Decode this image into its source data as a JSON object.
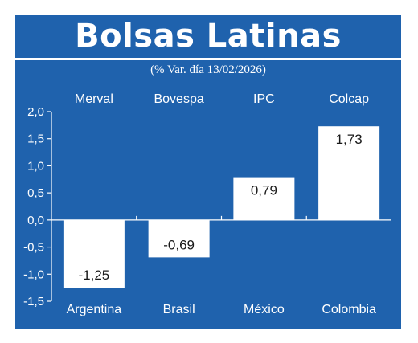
{
  "header": {
    "title": "Bolsas Latinas",
    "subtitle": "(% Var. día 13/02/2026)"
  },
  "colors": {
    "background": "#1f62ad",
    "bar": "#ffffff",
    "text": "#ffffff",
    "value_text": "#1a1a1a"
  },
  "chart_data": {
    "type": "bar",
    "categories": [
      "Argentina",
      "Brasil",
      "México",
      "Colombia"
    ],
    "index_names": [
      "Merval",
      "Bovespa",
      "IPC",
      "Colcap"
    ],
    "values": [
      -1.25,
      -0.69,
      0.79,
      1.73
    ],
    "value_labels": [
      "-1,25",
      "-0,69",
      "0,79",
      "1,73"
    ],
    "ylim": [
      -1.5,
      2.0
    ],
    "yticks": [
      2.0,
      1.5,
      1.0,
      0.5,
      0.0,
      -0.5,
      -1.0,
      -1.5
    ],
    "ytick_labels": [
      "2,0",
      "1,5",
      "1,0",
      "0,5",
      "0,0",
      "-0,5",
      "-1,0",
      "-1,5"
    ],
    "grid": false
  }
}
